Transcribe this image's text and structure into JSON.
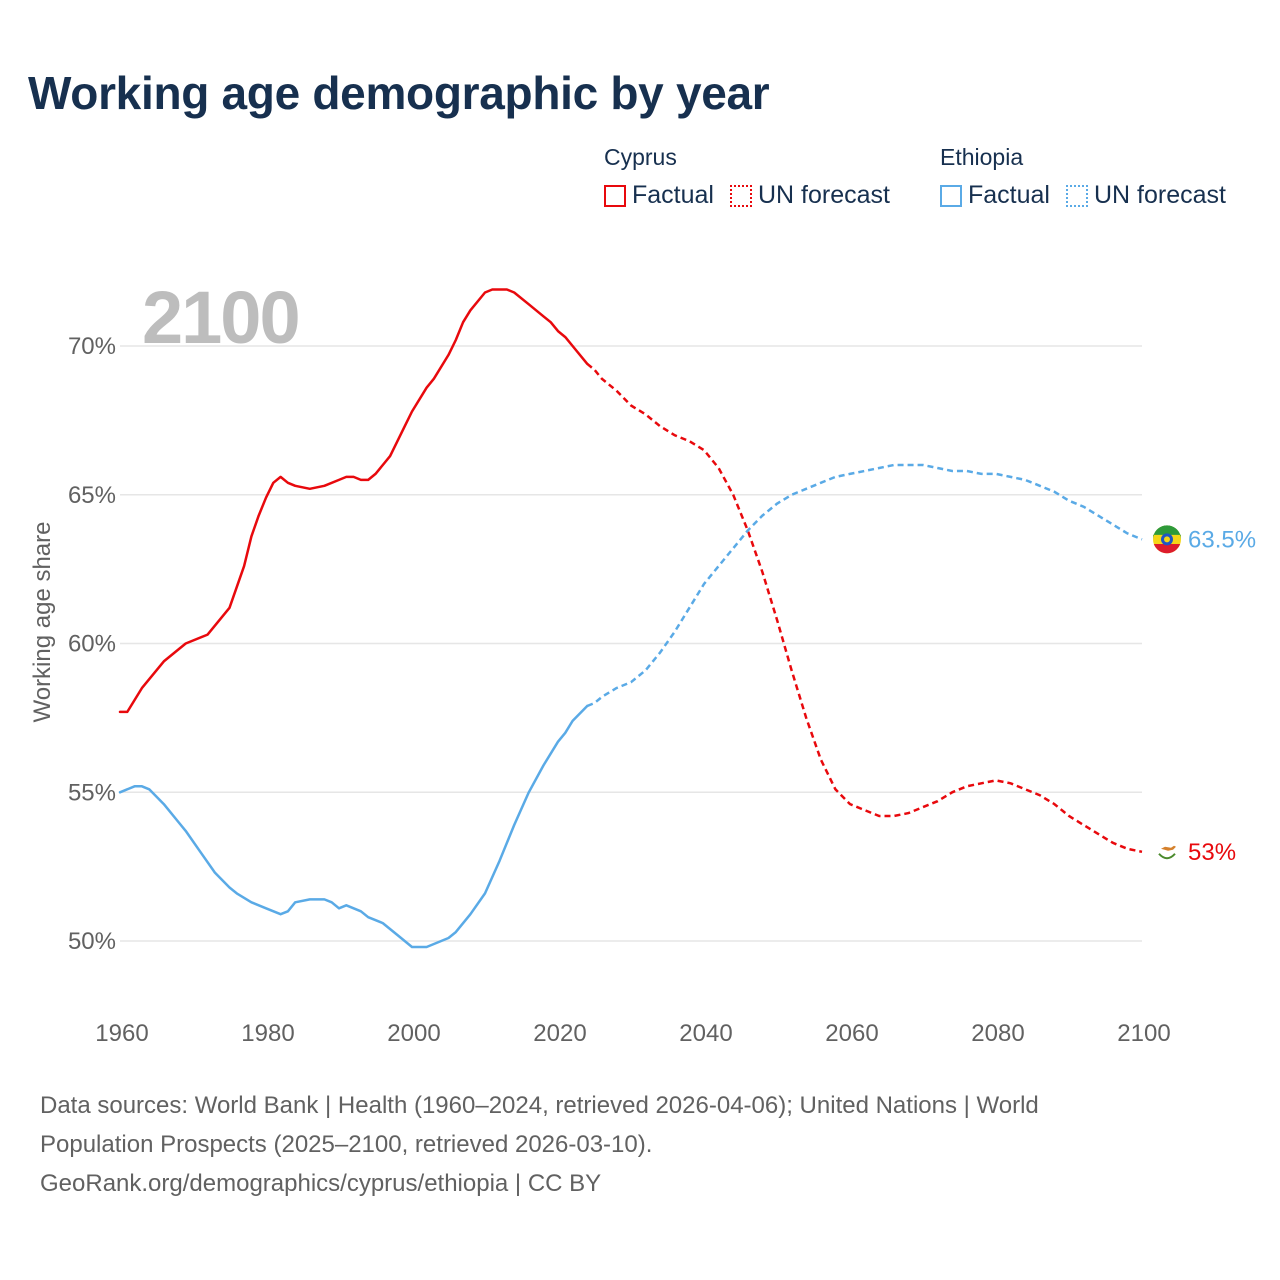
{
  "header": {
    "title": "Working age demographic by year"
  },
  "colors": {
    "cyprus": "#e8090d",
    "ethiopia": "#5aaae6",
    "grid": "#e6e6e6",
    "axis_text": "#616161",
    "year_text": "#bdbdbd",
    "title": "#17304f"
  },
  "legend": {
    "groups": [
      {
        "name": "Cyprus",
        "factual_label": "Factual",
        "forecast_label": "UN forecast"
      },
      {
        "name": "Ethiopia",
        "factual_label": "Factual",
        "forecast_label": "UN forecast"
      }
    ]
  },
  "chart_data": {
    "type": "line",
    "title": "Working age demographic by year",
    "xlabel": "",
    "ylabel": "Working age share",
    "current_year_label": "2100",
    "xlim": [
      1960,
      2100
    ],
    "ylim": [
      48,
      72.5
    ],
    "x_ticks": [
      1960,
      1980,
      2000,
      2020,
      2040,
      2060,
      2080,
      2100
    ],
    "y_ticks": [
      50,
      55,
      60,
      65,
      70
    ],
    "y_tick_labels": [
      "50%",
      "55%",
      "60%",
      "65%",
      "70%"
    ],
    "forecast_start": 2024,
    "series": [
      {
        "name": "Cyprus",
        "color": "#e8090d",
        "end_label": "53%",
        "end_icon": "cyprus-flag-icon",
        "points": [
          [
            1960,
            57.7
          ],
          [
            1961,
            57.7
          ],
          [
            1963,
            58.5
          ],
          [
            1966,
            59.4
          ],
          [
            1969,
            60.0
          ],
          [
            1972,
            60.3
          ],
          [
            1975,
            61.2
          ],
          [
            1977,
            62.6
          ],
          [
            1978,
            63.6
          ],
          [
            1979,
            64.3
          ],
          [
            1980,
            64.9
          ],
          [
            1981,
            65.4
          ],
          [
            1982,
            65.6
          ],
          [
            1983,
            65.4
          ],
          [
            1984,
            65.3
          ],
          [
            1986,
            65.2
          ],
          [
            1988,
            65.3
          ],
          [
            1990,
            65.5
          ],
          [
            1991,
            65.6
          ],
          [
            1992,
            65.6
          ],
          [
            1993,
            65.5
          ],
          [
            1994,
            65.5
          ],
          [
            1995,
            65.7
          ],
          [
            1997,
            66.3
          ],
          [
            1999,
            67.3
          ],
          [
            2000,
            67.8
          ],
          [
            2002,
            68.6
          ],
          [
            2003,
            68.9
          ],
          [
            2005,
            69.7
          ],
          [
            2006,
            70.2
          ],
          [
            2007,
            70.8
          ],
          [
            2008,
            71.2
          ],
          [
            2010,
            71.8
          ],
          [
            2011,
            71.9
          ],
          [
            2013,
            71.9
          ],
          [
            2014,
            71.8
          ],
          [
            2016,
            71.4
          ],
          [
            2018,
            71.0
          ],
          [
            2019,
            70.8
          ],
          [
            2020,
            70.5
          ],
          [
            2021,
            70.3
          ],
          [
            2022,
            70.0
          ],
          [
            2024,
            69.4
          ],
          [
            2025,
            69.2
          ],
          [
            2026,
            68.9
          ],
          [
            2028,
            68.5
          ],
          [
            2030,
            68.0
          ],
          [
            2032,
            67.7
          ],
          [
            2034,
            67.3
          ],
          [
            2036,
            67.0
          ],
          [
            2038,
            66.8
          ],
          [
            2040,
            66.5
          ],
          [
            2042,
            65.9
          ],
          [
            2044,
            65.0
          ],
          [
            2046,
            63.8
          ],
          [
            2048,
            62.4
          ],
          [
            2050,
            60.8
          ],
          [
            2052,
            59.1
          ],
          [
            2054,
            57.5
          ],
          [
            2056,
            56.1
          ],
          [
            2058,
            55.1
          ],
          [
            2060,
            54.6
          ],
          [
            2062,
            54.4
          ],
          [
            2064,
            54.2
          ],
          [
            2066,
            54.2
          ],
          [
            2068,
            54.3
          ],
          [
            2070,
            54.5
          ],
          [
            2072,
            54.7
          ],
          [
            2074,
            55.0
          ],
          [
            2076,
            55.2
          ],
          [
            2078,
            55.3
          ],
          [
            2080,
            55.4
          ],
          [
            2082,
            55.3
          ],
          [
            2084,
            55.1
          ],
          [
            2086,
            54.9
          ],
          [
            2088,
            54.6
          ],
          [
            2090,
            54.2
          ],
          [
            2092,
            53.9
          ],
          [
            2094,
            53.6
          ],
          [
            2096,
            53.3
          ],
          [
            2098,
            53.1
          ],
          [
            2100,
            53.0
          ]
        ]
      },
      {
        "name": "Ethiopia",
        "color": "#5aaae6",
        "end_label": "63.5%",
        "end_icon": "ethiopia-flag-icon",
        "points": [
          [
            1960,
            55.0
          ],
          [
            1962,
            55.2
          ],
          [
            1963,
            55.2
          ],
          [
            1964,
            55.1
          ],
          [
            1966,
            54.6
          ],
          [
            1968,
            54.0
          ],
          [
            1969,
            53.7
          ],
          [
            1971,
            53.0
          ],
          [
            1973,
            52.3
          ],
          [
            1975,
            51.8
          ],
          [
            1976,
            51.6
          ],
          [
            1978,
            51.3
          ],
          [
            1980,
            51.1
          ],
          [
            1982,
            50.9
          ],
          [
            1983,
            51.0
          ],
          [
            1984,
            51.3
          ],
          [
            1986,
            51.4
          ],
          [
            1988,
            51.4
          ],
          [
            1989,
            51.3
          ],
          [
            1990,
            51.1
          ],
          [
            1991,
            51.2
          ],
          [
            1993,
            51.0
          ],
          [
            1994,
            50.8
          ],
          [
            1996,
            50.6
          ],
          [
            1998,
            50.2
          ],
          [
            2000,
            49.8
          ],
          [
            2002,
            49.8
          ],
          [
            2004,
            50.0
          ],
          [
            2005,
            50.1
          ],
          [
            2006,
            50.3
          ],
          [
            2008,
            50.9
          ],
          [
            2010,
            51.6
          ],
          [
            2012,
            52.7
          ],
          [
            2014,
            53.9
          ],
          [
            2016,
            55.0
          ],
          [
            2018,
            55.9
          ],
          [
            2020,
            56.7
          ],
          [
            2021,
            57.0
          ],
          [
            2022,
            57.4
          ],
          [
            2024,
            57.9
          ],
          [
            2025,
            58.0
          ],
          [
            2026,
            58.2
          ],
          [
            2028,
            58.5
          ],
          [
            2030,
            58.7
          ],
          [
            2032,
            59.1
          ],
          [
            2034,
            59.7
          ],
          [
            2036,
            60.4
          ],
          [
            2038,
            61.2
          ],
          [
            2040,
            62.0
          ],
          [
            2042,
            62.6
          ],
          [
            2044,
            63.2
          ],
          [
            2046,
            63.8
          ],
          [
            2048,
            64.3
          ],
          [
            2050,
            64.7
          ],
          [
            2052,
            65.0
          ],
          [
            2054,
            65.2
          ],
          [
            2056,
            65.4
          ],
          [
            2058,
            65.6
          ],
          [
            2060,
            65.7
          ],
          [
            2062,
            65.8
          ],
          [
            2064,
            65.9
          ],
          [
            2066,
            66.0
          ],
          [
            2068,
            66.0
          ],
          [
            2070,
            66.0
          ],
          [
            2072,
            65.9
          ],
          [
            2074,
            65.8
          ],
          [
            2076,
            65.8
          ],
          [
            2078,
            65.7
          ],
          [
            2080,
            65.7
          ],
          [
            2082,
            65.6
          ],
          [
            2084,
            65.5
          ],
          [
            2086,
            65.3
          ],
          [
            2088,
            65.1
          ],
          [
            2090,
            64.8
          ],
          [
            2092,
            64.6
          ],
          [
            2094,
            64.3
          ],
          [
            2096,
            64.0
          ],
          [
            2098,
            63.7
          ],
          [
            2100,
            63.5
          ]
        ]
      }
    ]
  },
  "footer": {
    "line1": "Data sources: World Bank | Health (1960–2024, retrieved 2026-04-06); United Nations | World",
    "line2": "Population Prospects (2025–2100, retrieved 2026-03-10).",
    "line3": "GeoRank.org/demographics/cyprus/ethiopia | CC BY"
  }
}
